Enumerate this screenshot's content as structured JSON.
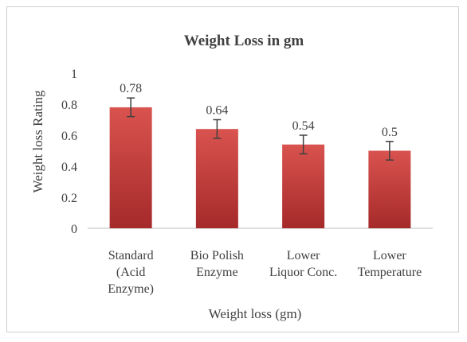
{
  "chart_data": {
    "type": "bar",
    "title": "Weight Loss in gm",
    "xlabel": "Weight loss (gm)",
    "ylabel": "Weight loss Rating",
    "categories": [
      [
        "Standard",
        "(Acid",
        "Enzyme)"
      ],
      [
        "Bio Polish",
        "Enzyme"
      ],
      [
        "Lower",
        "Liquor Conc."
      ],
      [
        "Lower",
        "Temperature"
      ]
    ],
    "values": [
      0.78,
      0.64,
      0.54,
      0.5
    ],
    "error": [
      0.06,
      0.06,
      0.06,
      0.06
    ],
    "data_labels": [
      "0.78",
      "0.64",
      "0.54",
      "0.5"
    ],
    "ylim": [
      0,
      1
    ],
    "yticks": [
      "0",
      "0.2",
      "0.4",
      "0.6",
      "0.8",
      "1"
    ],
    "grid": false,
    "colors": {
      "bar_top": "#d9534f",
      "bar_bottom": "#a52a2a",
      "error_bar": "#404040",
      "axis": "#bfbfbf"
    }
  }
}
